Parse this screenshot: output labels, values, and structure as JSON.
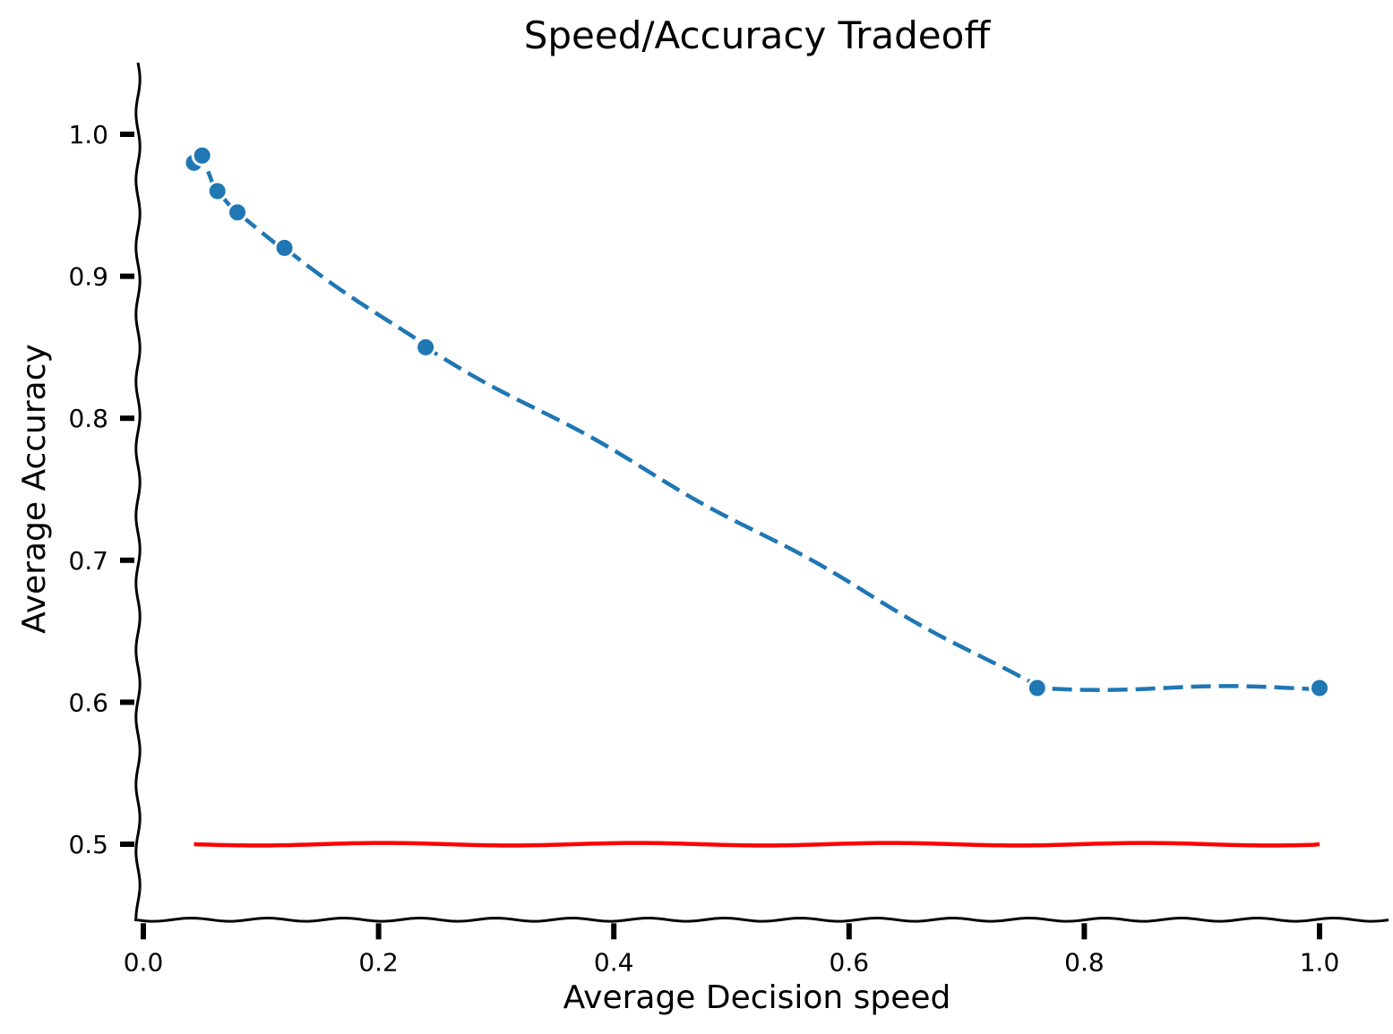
{
  "chart_data": {
    "type": "line",
    "title": "Speed/Accuracy Tradeoff",
    "xlabel": "Average Decision speed",
    "ylabel": "Average Accuracy",
    "xlim": [
      0.0,
      1.05
    ],
    "ylim": [
      0.45,
      1.05
    ],
    "xticks": [
      "0.0",
      "0.2",
      "0.4",
      "0.6",
      "0.8",
      "1.0"
    ],
    "yticks": [
      "0.5",
      "0.6",
      "0.7",
      "0.8",
      "0.9",
      "1.0"
    ],
    "grid": false,
    "style": "xkcd hand-drawn",
    "series": [
      {
        "line_style": "dashed",
        "markers": true,
        "color": "#1f77b4",
        "x": [
          0.043,
          0.05,
          0.063,
          0.08,
          0.12,
          0.24,
          0.76,
          1.0
        ],
        "y": [
          0.98,
          0.985,
          0.96,
          0.945,
          0.92,
          0.85,
          0.61,
          0.61
        ]
      },
      {
        "line_style": "solid",
        "markers": false,
        "color": "#ff0000",
        "x": [
          0.043,
          1.0
        ],
        "y": [
          0.5,
          0.5
        ]
      }
    ]
  }
}
